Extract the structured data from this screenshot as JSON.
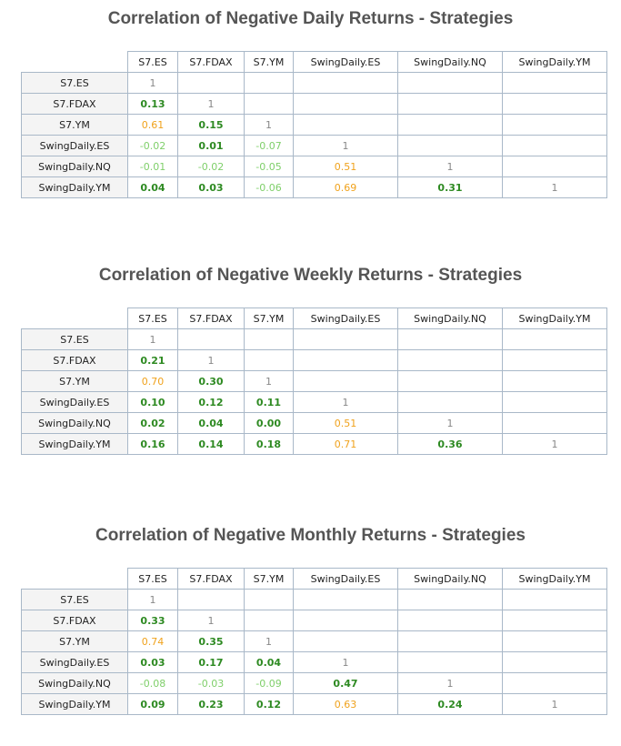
{
  "tables": [
    {
      "title": "Correlation of Negative Daily Returns - Strategies",
      "columns": [
        "S7.ES",
        "S7.FDAX",
        "S7.YM",
        "SwingDaily.ES",
        "SwingDaily.NQ",
        "SwingDaily.YM"
      ],
      "rows": [
        {
          "label": "S7.ES",
          "cells": [
            "1"
          ]
        },
        {
          "label": "S7.FDAX",
          "cells": [
            "0.13",
            "1"
          ]
        },
        {
          "label": "S7.YM",
          "cells": [
            "0.61",
            "0.15",
            "1"
          ]
        },
        {
          "label": "SwingDaily.ES",
          "cells": [
            "-0.02",
            "0.01",
            "-0.07",
            "1"
          ]
        },
        {
          "label": "SwingDaily.NQ",
          "cells": [
            "-0.01",
            "-0.02",
            "-0.05",
            "0.51",
            "1"
          ]
        },
        {
          "label": "SwingDaily.YM",
          "cells": [
            "0.04",
            "0.03",
            "-0.06",
            "0.69",
            "0.31",
            "1"
          ]
        }
      ]
    },
    {
      "title": "Correlation of Negative Weekly Returns - Strategies",
      "columns": [
        "S7.ES",
        "S7.FDAX",
        "S7.YM",
        "SwingDaily.ES",
        "SwingDaily.NQ",
        "SwingDaily.YM"
      ],
      "rows": [
        {
          "label": "S7.ES",
          "cells": [
            "1"
          ]
        },
        {
          "label": "S7.FDAX",
          "cells": [
            "0.21",
            "1"
          ]
        },
        {
          "label": "S7.YM",
          "cells": [
            "0.70",
            "0.30",
            "1"
          ]
        },
        {
          "label": "SwingDaily.ES",
          "cells": [
            "0.10",
            "0.12",
            "0.11",
            "1"
          ]
        },
        {
          "label": "SwingDaily.NQ",
          "cells": [
            "0.02",
            "0.04",
            "0.00",
            "0.51",
            "1"
          ]
        },
        {
          "label": "SwingDaily.YM",
          "cells": [
            "0.16",
            "0.14",
            "0.18",
            "0.71",
            "0.36",
            "1"
          ]
        }
      ]
    },
    {
      "title": "Correlation of Negative Monthly Returns - Strategies",
      "columns": [
        "S7.ES",
        "S7.FDAX",
        "S7.YM",
        "SwingDaily.ES",
        "SwingDaily.NQ",
        "SwingDaily.YM"
      ],
      "rows": [
        {
          "label": "S7.ES",
          "cells": [
            "1"
          ]
        },
        {
          "label": "S7.FDAX",
          "cells": [
            "0.33",
            "1"
          ]
        },
        {
          "label": "S7.YM",
          "cells": [
            "0.74",
            "0.35",
            "1"
          ]
        },
        {
          "label": "SwingDaily.ES",
          "cells": [
            "0.03",
            "0.17",
            "0.04",
            "1"
          ]
        },
        {
          "label": "SwingDaily.NQ",
          "cells": [
            "-0.08",
            "-0.03",
            "-0.09",
            "0.47",
            "1"
          ]
        },
        {
          "label": "SwingDaily.YM",
          "cells": [
            "0.09",
            "0.23",
            "0.12",
            "0.63",
            "0.24",
            "1"
          ]
        }
      ]
    }
  ]
}
